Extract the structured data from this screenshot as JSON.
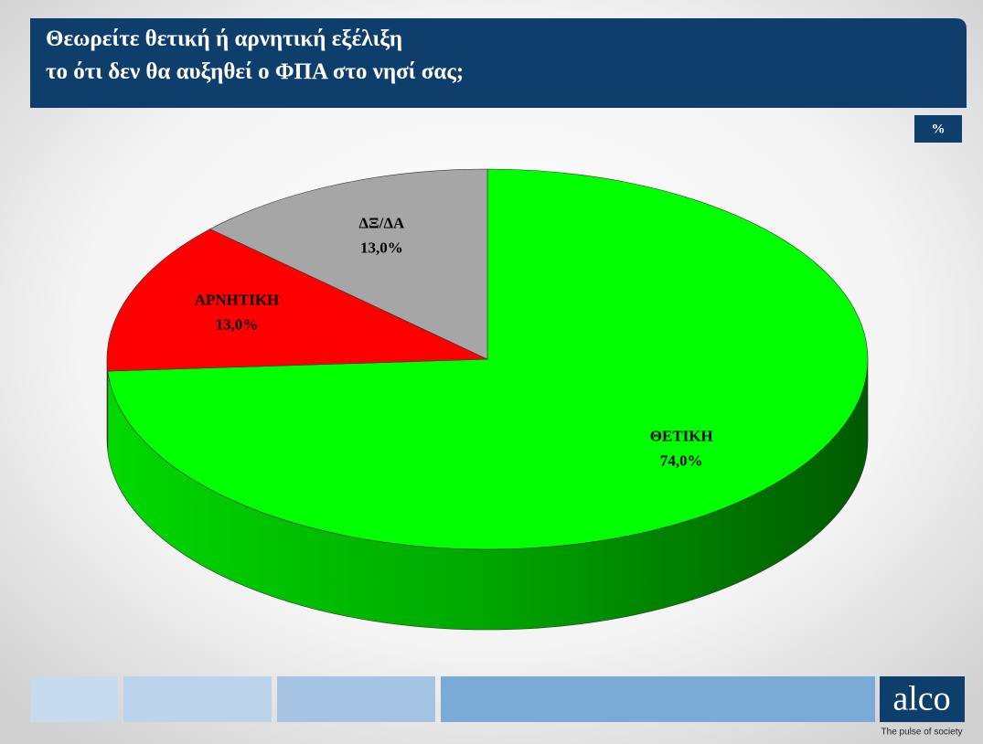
{
  "chart_data": {
    "type": "pie",
    "title": [
      "Θεωρείτε θετική ή αρνητική εξέλιξη",
      "το ότι δεν θα αυξηθεί ο ΦΠΑ στο νησί σας;"
    ],
    "unit": "%",
    "categories": [
      "ΘΕΤΙΚΗ",
      "ΑΡΝΗΤΙΚΗ",
      "ΔΞ/ΔΑ"
    ],
    "values": [
      74.0,
      13.0,
      13.0
    ],
    "value_labels": [
      "74,0%",
      "13,0%",
      "13,0%"
    ],
    "colors": [
      "#00ff00",
      "#ff0000",
      "#a6a6a6"
    ]
  },
  "footer": {
    "logo": "alco",
    "tagline": "The pulse of society"
  }
}
